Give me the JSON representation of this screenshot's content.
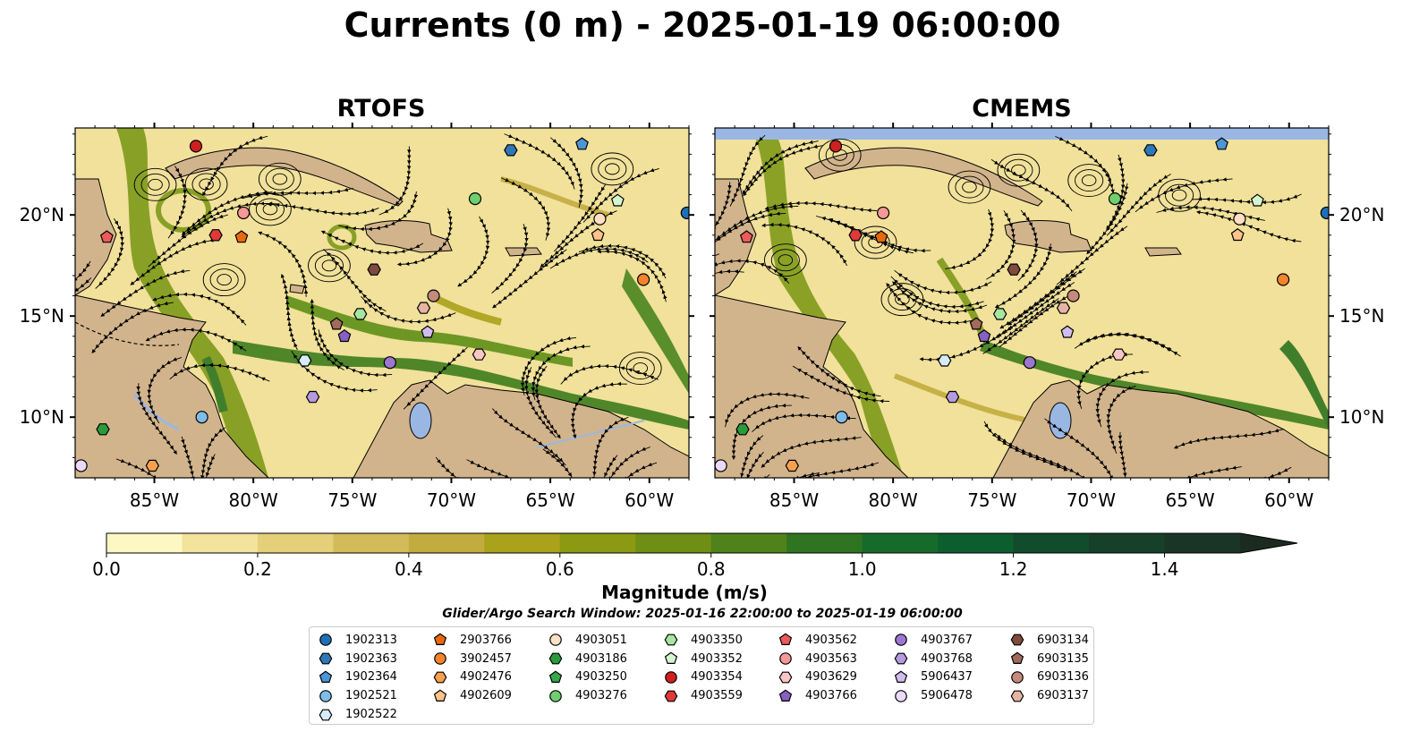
{
  "title": "Currents (0 m) - 2025-01-19 06:00:00",
  "panels": [
    {
      "title": "RTOFS"
    },
    {
      "title": "CMEMS"
    }
  ],
  "lon_ticks": [
    "85°W",
    "80°W",
    "75°W",
    "70°W",
    "65°W",
    "60°W"
  ],
  "lat_ticks": [
    "20°N",
    "15°N",
    "10°N"
  ],
  "colorbar": {
    "label": "Magnitude (m/s)",
    "ticks": [
      "0.0",
      "0.2",
      "0.4",
      "0.6",
      "0.8",
      "1.0",
      "1.2",
      "1.4"
    ],
    "colors": [
      "#fdf7c3",
      "#f3e39c",
      "#e5cf78",
      "#d4bb5a",
      "#c2ac3f",
      "#a9a21a",
      "#8b9a12",
      "#6e8f14",
      "#4f821a",
      "#2f7421",
      "#166b2b",
      "#0d5e2e",
      "#114c2c",
      "#17402a",
      "#1a3526",
      "#1c2b1f"
    ]
  },
  "search_window": "Glider/Argo Search Window: 2025-01-16 22:00:00 to 2025-01-19 06:00:00",
  "land_color": "#d2b48c",
  "water_color": "#9ab7e3",
  "legend": [
    [
      {
        "id": "1902313",
        "marker": "circle",
        "color": "#1f6fb4"
      },
      {
        "id": "1902363",
        "marker": "hexagon",
        "color": "#2f78b8"
      },
      {
        "id": "1902364",
        "marker": "pentagon",
        "color": "#4e95d6"
      },
      {
        "id": "1902521",
        "marker": "circle",
        "color": "#7fbde9"
      },
      {
        "id": "1902522",
        "marker": "hexagon",
        "color": "#d6ecfa"
      }
    ],
    [
      {
        "id": "2903766",
        "marker": "pentagon",
        "color": "#e8690b"
      },
      {
        "id": "3902457",
        "marker": "circle",
        "color": "#f4832b"
      },
      {
        "id": "4902476",
        "marker": "hexagon",
        "color": "#f9a04e"
      },
      {
        "id": "4902609",
        "marker": "pentagon",
        "color": "#fcc38a"
      }
    ],
    [
      {
        "id": "4903051",
        "marker": "circle",
        "color": "#fde0c6"
      },
      {
        "id": "4903186",
        "marker": "hexagon",
        "color": "#2a9a3a"
      },
      {
        "id": "4903250",
        "marker": "pentagon",
        "color": "#36a84a"
      },
      {
        "id": "4903276",
        "marker": "circle",
        "color": "#6fcf6f"
      }
    ],
    [
      {
        "id": "4903350",
        "marker": "hexagon",
        "color": "#a6e6a0"
      },
      {
        "id": "4903352",
        "marker": "pentagon",
        "color": "#d3f5cf"
      },
      {
        "id": "4903354",
        "marker": "circle",
        "color": "#cf1f1f"
      },
      {
        "id": "4903559",
        "marker": "hexagon",
        "color": "#de3a3a"
      }
    ],
    [
      {
        "id": "4903562",
        "marker": "pentagon",
        "color": "#ee5a5a"
      },
      {
        "id": "4903563",
        "marker": "circle",
        "color": "#f49898"
      },
      {
        "id": "4903629",
        "marker": "hexagon",
        "color": "#f9c6c6"
      },
      {
        "id": "4903766",
        "marker": "pentagon",
        "color": "#8660c2"
      }
    ],
    [
      {
        "id": "4903767",
        "marker": "circle",
        "color": "#9d77cf"
      },
      {
        "id": "4903768",
        "marker": "hexagon",
        "color": "#b59ae0"
      },
      {
        "id": "5906437",
        "marker": "pentagon",
        "color": "#d1bcee"
      },
      {
        "id": "5906478",
        "marker": "circle",
        "color": "#ead9fa"
      }
    ],
    [
      {
        "id": "6903134",
        "marker": "hexagon",
        "color": "#7e4b3e"
      },
      {
        "id": "6903135",
        "marker": "pentagon",
        "color": "#a06a5c"
      },
      {
        "id": "6903136",
        "marker": "circle",
        "color": "#c48a7c"
      },
      {
        "id": "6903137",
        "marker": "hexagon",
        "color": "#e6b4a5"
      }
    ]
  ],
  "floats": [
    {
      "id": "4903354",
      "lon": -82.9,
      "lat": 23.4,
      "marker": "circle",
      "color": "#cf1f1f"
    },
    {
      "id": "1902363",
      "lon": -67.0,
      "lat": 23.2,
      "marker": "hexagon",
      "color": "#2f78b8"
    },
    {
      "id": "1902364",
      "lon": -63.4,
      "lat": 23.5,
      "marker": "pentagon",
      "color": "#4e95d6"
    },
    {
      "id": "4903276",
      "lon": -68.8,
      "lat": 20.8,
      "marker": "circle",
      "color": "#6fcf6f"
    },
    {
      "id": "4903352",
      "lon": -61.6,
      "lat": 20.7,
      "marker": "pentagon",
      "color": "#d3f5cf"
    },
    {
      "id": "1902313",
      "lon": -58.1,
      "lat": 20.1,
      "marker": "circle",
      "color": "#1f6fb4"
    },
    {
      "id": "4903051",
      "lon": -62.5,
      "lat": 19.8,
      "marker": "circle",
      "color": "#fde0c6"
    },
    {
      "id": "4902609",
      "lon": -62.6,
      "lat": 19.0,
      "marker": "pentagon",
      "color": "#fcc38a"
    },
    {
      "id": "4903563",
      "lon": -80.5,
      "lat": 20.1,
      "marker": "circle",
      "color": "#f49898"
    },
    {
      "id": "4903559",
      "lon": -81.9,
      "lat": 19.0,
      "marker": "hexagon",
      "color": "#de3a3a"
    },
    {
      "id": "2903766",
      "lon": -80.6,
      "lat": 18.9,
      "marker": "pentagon",
      "color": "#e8690b"
    },
    {
      "id": "4903562",
      "lon": -87.4,
      "lat": 18.9,
      "marker": "pentagon",
      "color": "#ee5a5a"
    },
    {
      "id": "6903134",
      "lon": -73.9,
      "lat": 17.3,
      "marker": "hexagon",
      "color": "#7e4b3e"
    },
    {
      "id": "3902457",
      "lon": -60.3,
      "lat": 16.8,
      "marker": "circle",
      "color": "#f4832b"
    },
    {
      "id": "6903136",
      "lon": -70.9,
      "lat": 16.0,
      "marker": "circle",
      "color": "#c48a7c"
    },
    {
      "id": "6903137",
      "lon": -71.4,
      "lat": 15.4,
      "marker": "hexagon",
      "color": "#e6b4a5"
    },
    {
      "id": "4903350",
      "lon": -74.6,
      "lat": 15.1,
      "marker": "hexagon",
      "color": "#a6e6a0"
    },
    {
      "id": "6903135",
      "lon": -75.8,
      "lat": 14.6,
      "marker": "pentagon",
      "color": "#a06a5c"
    },
    {
      "id": "4903766",
      "lon": -75.4,
      "lat": 14.0,
      "marker": "pentagon",
      "color": "#8660c2"
    },
    {
      "id": "5906437",
      "lon": -71.2,
      "lat": 14.2,
      "marker": "pentagon",
      "color": "#d1bcee"
    },
    {
      "id": "4903767",
      "lon": -73.1,
      "lat": 12.7,
      "marker": "circle",
      "color": "#9d77cf"
    },
    {
      "id": "4903629",
      "lon": -68.6,
      "lat": 13.1,
      "marker": "hexagon",
      "color": "#f9c6c6"
    },
    {
      "id": "1902522",
      "lon": -77.4,
      "lat": 12.8,
      "marker": "hexagon",
      "color": "#d6ecfa"
    },
    {
      "id": "4903768",
      "lon": -77.0,
      "lat": 11.0,
      "marker": "hexagon",
      "color": "#b59ae0"
    },
    {
      "id": "1902521",
      "lon": -82.6,
      "lat": 10.0,
      "marker": "circle",
      "color": "#7fbde9"
    },
    {
      "id": "4903186",
      "lon": -87.6,
      "lat": 9.4,
      "marker": "hexagon",
      "color": "#2a9a3a"
    },
    {
      "id": "5906478",
      "lon": -88.7,
      "lat": 7.6,
      "marker": "circle",
      "color": "#ead9fa"
    },
    {
      "id": "4902476",
      "lon": -85.1,
      "lat": 7.6,
      "marker": "hexagon",
      "color": "#f9a04e"
    }
  ]
}
